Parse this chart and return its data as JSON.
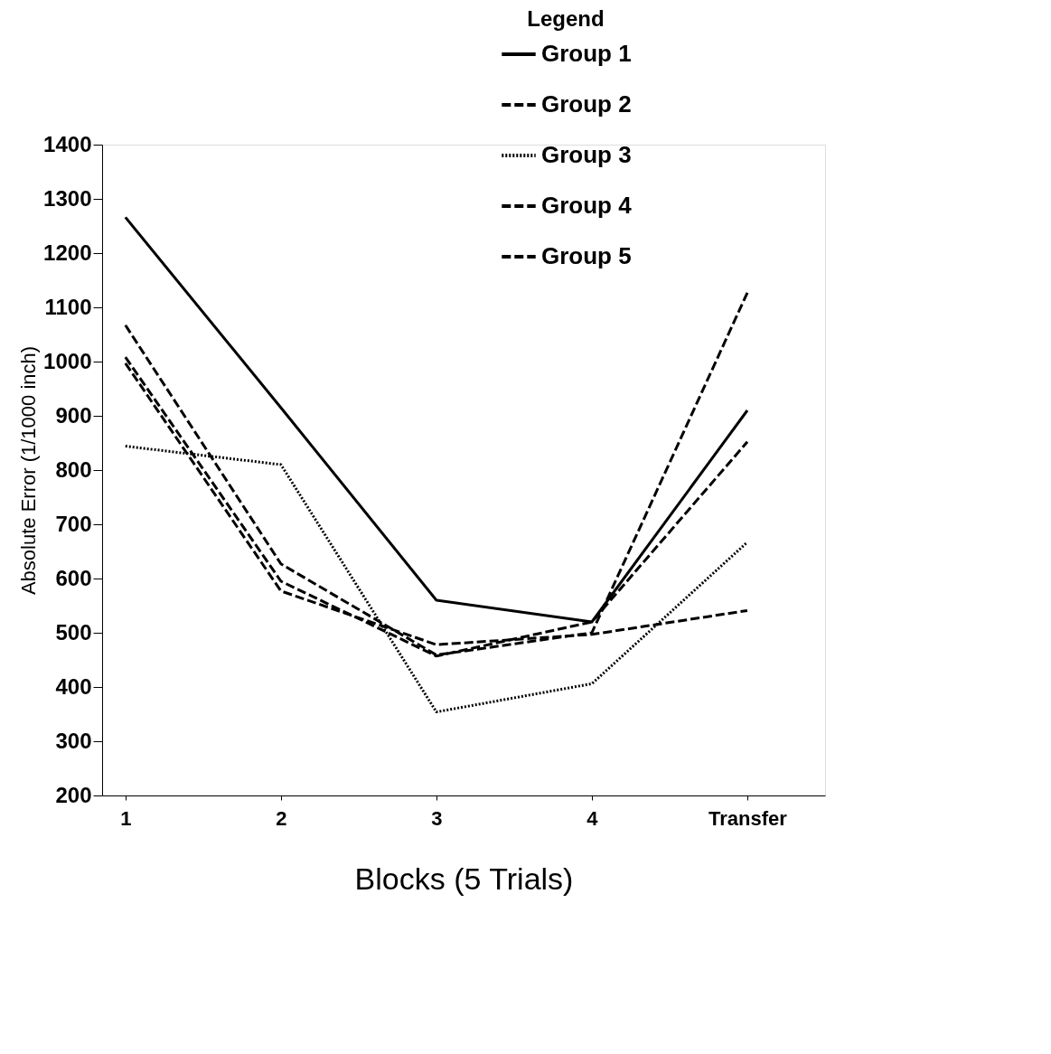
{
  "chart_data": {
    "type": "line",
    "xlabel": "Blocks (5 Trials)",
    "ylabel": "Absolute Error (1/1000 inch)",
    "legend_title": "Legend",
    "legend": "top right",
    "grid": false,
    "marker": "none",
    "categories": [
      "1",
      "2",
      "3",
      "4",
      "Transfer"
    ],
    "ylim": [
      200,
      1400
    ],
    "yticks": [
      200,
      300,
      400,
      500,
      600,
      700,
      800,
      900,
      1000,
      1100,
      1200,
      1300,
      1400
    ],
    "series": [
      {
        "name": "Group 1",
        "color": "#000000",
        "line_style": "solid",
        "values": [
          1266,
          915,
          560,
          520,
          910
        ]
      },
      {
        "name": "Group 2",
        "color": "#000000",
        "line_style": "dashed",
        "values": [
          997,
          577,
          478,
          497,
          541
        ]
      },
      {
        "name": "Group 3",
        "color": "#000000",
        "line_style": "dotted",
        "values": [
          844,
          810,
          354,
          406,
          667
        ]
      },
      {
        "name": "Group 4",
        "color": "#000000",
        "line_style": "dashed",
        "values": [
          1008,
          595,
          457,
          520,
          852
        ]
      },
      {
        "name": "Group 5",
        "color": "#000000",
        "line_style": "dashed",
        "values": [
          1067,
          627,
          459,
          500,
          1127
        ]
      }
    ]
  }
}
